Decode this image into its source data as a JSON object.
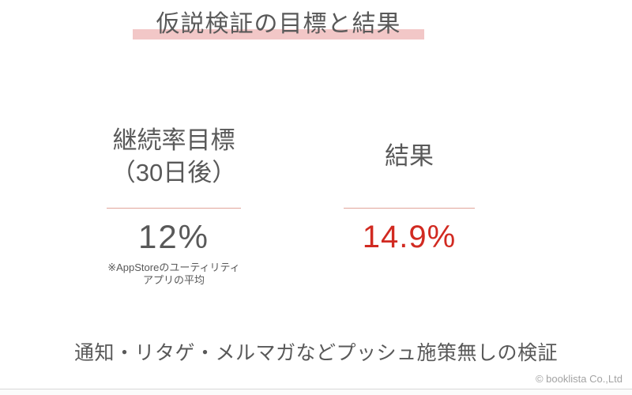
{
  "slide": {
    "title": "仮説検証の目標と結果",
    "columns": [
      {
        "heading_line1": "継続率目標",
        "heading_line2": "（30日後）",
        "value": "12%",
        "note_line1": "※AppStoreのユーティリティ",
        "note_line2": "アプリの平均"
      },
      {
        "heading_line1": "結果",
        "value": "14.9%"
      }
    ],
    "bottom_note": "通知・リタゲ・メルマガなどプッシュ施策無しの検証",
    "footer": "© booklista Co.,Ltd",
    "colors": {
      "accent_pink": "#f2c7c7",
      "divider_salmon": "#e2a49b",
      "result_red": "#d12a21",
      "text_dark": "#595959",
      "footer_gray": "#a3a3a3"
    }
  }
}
